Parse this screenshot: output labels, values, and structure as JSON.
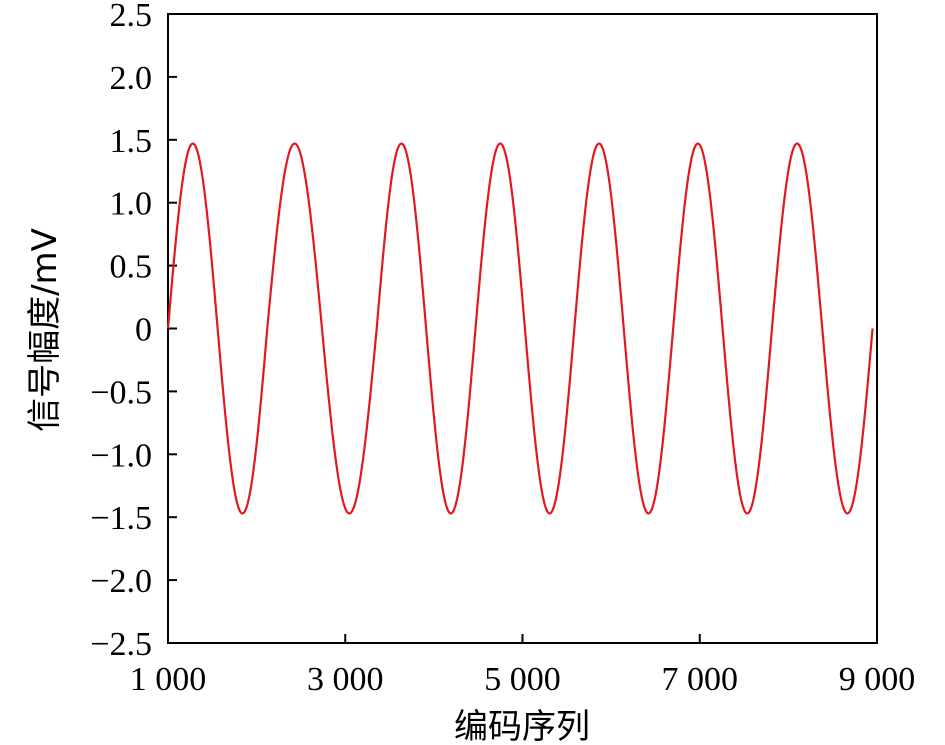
{
  "chart_data": {
    "type": "line",
    "title": "",
    "xlabel": "编码序列",
    "ylabel": "信号幅度/mV",
    "xlim": [
      1000,
      9000
    ],
    "ylim": [
      -2.5,
      2.5
    ],
    "x_ticks": [
      1000,
      3000,
      5000,
      7000,
      9000
    ],
    "x_tick_labels": [
      "1 000",
      "3 000",
      "5 000",
      "7 000",
      "9 000"
    ],
    "y_ticks": [
      2.5,
      2.0,
      1.5,
      1.0,
      0.5,
      0,
      -0.5,
      -1.0,
      -1.5,
      -2.0,
      -2.5
    ],
    "y_tick_labels": [
      "2.5",
      "2.0",
      "1.5",
      "1.0",
      "0.5",
      "0",
      "−0.5",
      "−1.0",
      "−1.5",
      "−2.0",
      "−2.5"
    ],
    "grid": false,
    "series": [
      {
        "color": "#e0191f",
        "amplitude": 1.47,
        "cycles": [
          [
            1000,
            2120
          ],
          [
            2120,
            3355
          ],
          [
            3355,
            4470
          ],
          [
            4470,
            5585
          ],
          [
            5585,
            6700
          ],
          [
            6700,
            7815
          ],
          [
            7815,
            8950
          ]
        ]
      }
    ]
  }
}
